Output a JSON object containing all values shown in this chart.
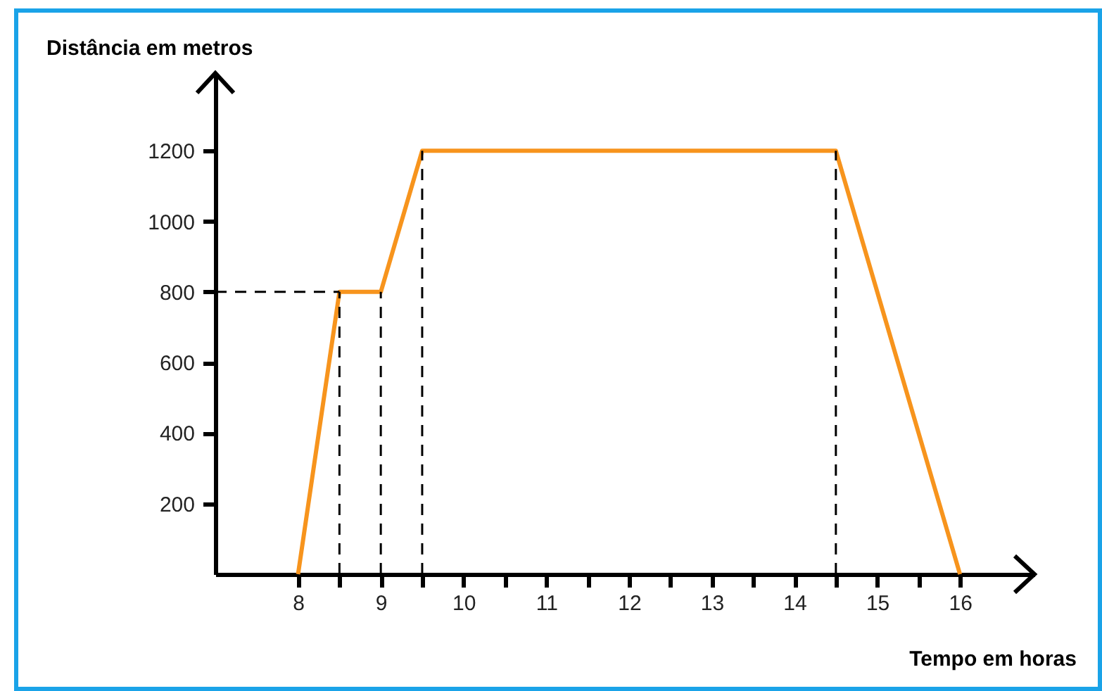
{
  "chart_data": {
    "type": "line",
    "xlabel": "Tempo em horas",
    "ylabel": "Distância em metros",
    "x": [
      8,
      8.5,
      9,
      9.5,
      14.5,
      16
    ],
    "series": [
      {
        "color": "#f7941d",
        "values": [
          0,
          800,
          800,
          1200,
          1200,
          0
        ]
      }
    ],
    "xlim": [
      7,
      16.9
    ],
    "ylim": [
      0,
      1420
    ],
    "xticks": [
      8,
      {
        "value": 8.5,
        "label": null
      },
      9,
      {
        "value": 9.5,
        "label": null
      },
      10,
      {
        "value": 10.5,
        "label": null
      },
      11,
      {
        "value": 11.5,
        "label": null
      },
      12,
      {
        "value": 12.5,
        "label": null
      },
      13,
      {
        "value": 13.5,
        "label": null
      },
      14,
      {
        "value": 14.5,
        "label": null
      },
      15,
      {
        "value": 15.5,
        "label": null
      },
      16
    ],
    "yticks": [
      200,
      400,
      600,
      800,
      1000,
      1200
    ],
    "ref_lines": [
      {
        "axis": "y",
        "value": 800,
        "line_style": "dashed"
      },
      {
        "axis": "x",
        "value": 8.5,
        "line_style": "dashed"
      },
      {
        "axis": "x",
        "value": 9,
        "line_style": "dashed"
      },
      {
        "axis": "x",
        "value": 9.5,
        "line_style": "dashed"
      },
      {
        "axis": "x",
        "value": 14.5,
        "line_style": "dashed"
      }
    ],
    "grid": false,
    "legend": false,
    "marker": "none",
    "line_style": "solid"
  }
}
